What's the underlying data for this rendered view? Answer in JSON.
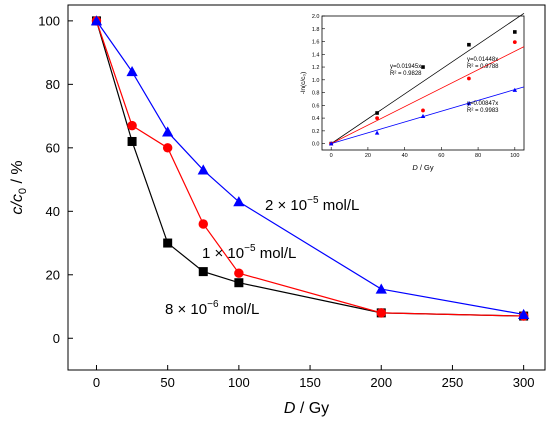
{
  "chart_data": [
    {
      "type": "line",
      "xlabel": "D",
      "xlabel_unit": "/ Gy",
      "ylabel": "c/c",
      "ylabel_sub": "0",
      "ylabel_unit": " / %",
      "xlim": [
        -20,
        315
      ],
      "ylim": [
        -10,
        105
      ],
      "xticks": [
        0,
        50,
        100,
        150,
        200,
        250,
        300
      ],
      "yticks": [
        0,
        20,
        40,
        60,
        80,
        100
      ],
      "grid": false,
      "series": [
        {
          "name": "8 × 10⁻⁶ mol/L",
          "color": "#000000",
          "marker": "square",
          "x": [
            0,
            25,
            50,
            75,
            100,
            200,
            300
          ],
          "y": [
            100,
            62,
            30,
            21,
            17.5,
            8,
            7
          ]
        },
        {
          "name": "1 × 10⁻⁵ mol/L",
          "color": "#ff0000",
          "marker": "circle",
          "x": [
            0,
            25,
            50,
            75,
            100,
            200,
            300
          ],
          "y": [
            100,
            67,
            60,
            36,
            20.5,
            8,
            7
          ]
        },
        {
          "name": "2 × 10⁻⁵ mol/L",
          "color": "#0000ff",
          "marker": "triangle",
          "x": [
            0,
            25,
            50,
            75,
            100,
            200,
            300
          ],
          "y": [
            100,
            84,
            65,
            53,
            43,
            15.5,
            7.5
          ]
        }
      ],
      "annotations": {
        "black": {
          "prefix": "8 × 10",
          "exp": "−6",
          "suffix": " mol/L"
        },
        "red": {
          "prefix": "1 × 10",
          "exp": "−5",
          "suffix": " mol/L"
        },
        "blue": {
          "prefix": "2 × 10",
          "exp": "−5",
          "suffix": " mol/L"
        }
      }
    },
    {
      "type": "scatter",
      "placement": "inset top-right",
      "xlabel": "D",
      "xlabel_unit": " / Gy",
      "ylabel": "-ln(c/c₀)",
      "xlim": [
        -5,
        105
      ],
      "ylim": [
        -0.1,
        2.0
      ],
      "xticks": [
        0,
        20,
        40,
        60,
        80,
        100
      ],
      "yticks": [
        0.0,
        0.2,
        0.4,
        0.6,
        0.8,
        1.0,
        1.2,
        1.4,
        1.6,
        1.8,
        2.0
      ],
      "series": [
        {
          "color": "#000000",
          "marker": "square",
          "x": [
            0,
            25,
            50,
            75,
            100
          ],
          "y": [
            0,
            0.48,
            1.2,
            1.55,
            1.75
          ],
          "fit": {
            "slope": 0.01945,
            "equation": "y=0.01945x",
            "r2": "R² = 0.9828"
          }
        },
        {
          "color": "#ff0000",
          "marker": "circle",
          "x": [
            0,
            25,
            50,
            75,
            100
          ],
          "y": [
            0,
            0.4,
            0.52,
            1.02,
            1.59
          ],
          "fit": {
            "slope": 0.01448,
            "equation": "y=0.01448x",
            "r2": "R² = 0.9788"
          }
        },
        {
          "color": "#0000ff",
          "marker": "triangle",
          "x": [
            0,
            25,
            50,
            75,
            100
          ],
          "y": [
            0,
            0.17,
            0.43,
            0.63,
            0.84
          ],
          "fit": {
            "slope": 0.00847,
            "equation": "y=0.00847x",
            "r2": "R² = 0.9983"
          }
        }
      ]
    }
  ]
}
